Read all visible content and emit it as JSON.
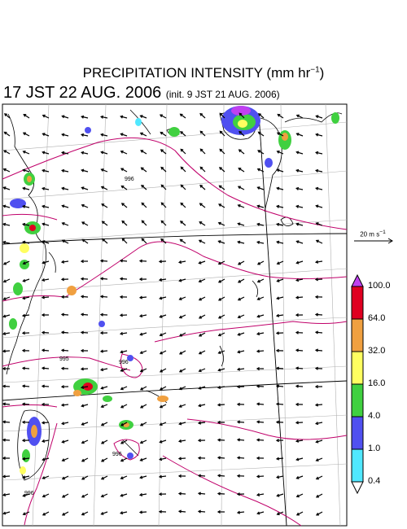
{
  "title": {
    "main_prefix": "PRECIPITATION INTENSITY (mm hr",
    "main_sup": "−1",
    "main_suffix": ")",
    "valid_time": "17 JST 22 AUG. 2006",
    "init_time": "(init. 9 JST 21 AUG. 2006)"
  },
  "wind_scale": {
    "label": "20 m s",
    "sup": "−1"
  },
  "colorbar": {
    "labels": [
      "100.0",
      "64.0",
      "32.0",
      "16.0",
      "4.0",
      "1.0",
      "0.4"
    ],
    "colors": [
      "#e00020",
      "#f0a040",
      "#ffff60",
      "#40d040",
      "#5050f0",
      "#50e8ff"
    ],
    "top_color": "#c040f0",
    "bottom_color": "#ffffff"
  },
  "isobars": [
    {
      "label": "996"
    },
    {
      "label": "995"
    },
    {
      "label": "996"
    },
    {
      "label": "996"
    },
    {
      "label": "996"
    }
  ],
  "colors": {
    "isobar": "#c0006a",
    "coast": "#000000",
    "grid": "#aaaaaa"
  }
}
